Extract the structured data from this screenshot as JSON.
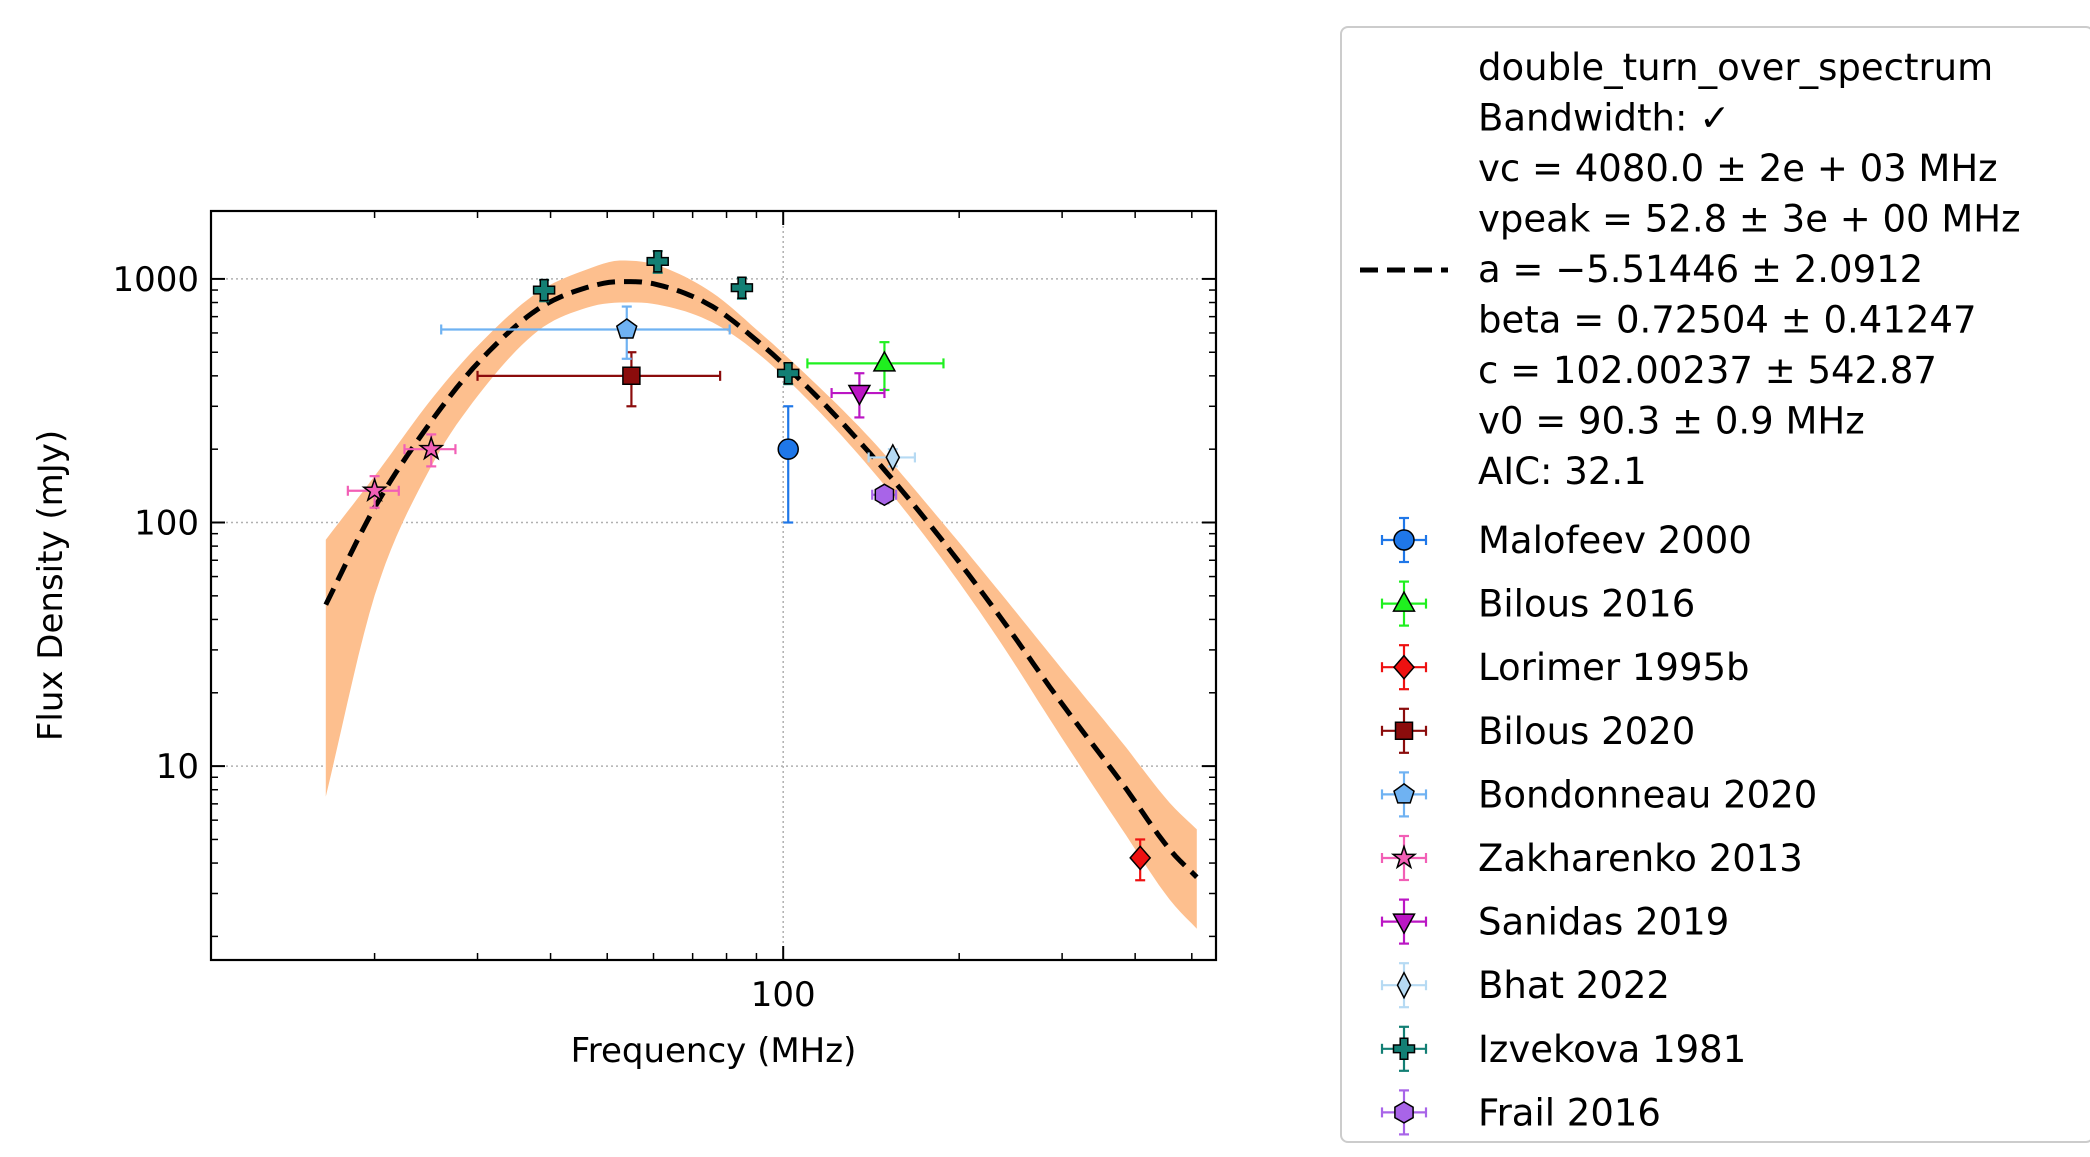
{
  "chart_data": {
    "type": "scatter",
    "xlabel": "Frequency (MHz)",
    "ylabel": "Flux Density (mJy)",
    "xscale": "log",
    "yscale": "log",
    "xlim": [
      10.5,
      550
    ],
    "ylim": [
      1.6,
      1900
    ],
    "x_ticks": [
      {
        "value": 100,
        "label": "100"
      }
    ],
    "y_ticks": [
      {
        "value": 10,
        "label": "10"
      },
      {
        "value": 100,
        "label": "100"
      },
      {
        "value": 1000,
        "label": "1000"
      }
    ],
    "grid": true,
    "legend_position": "outside-right",
    "fit": {
      "name": "double_turn_over_spectrum",
      "label_lines": [
        "double_turn_over_spectrum",
        "Bandwidth: ✓",
        "vc = 4080.0 ± 2e + 03 MHz",
        "vpeak = 52.8 ± 3e + 00 MHz",
        "a = −5.51446 ± 2.0912",
        "beta = 0.72504 ± 0.41247",
        "c = 102.00237 ± 542.87",
        "v0 = 90.3 ± 0.9 MHz",
        "AIC: 32.1"
      ],
      "color": "#000000",
      "band_color": "#fdbf8e",
      "x_range": [
        16.5,
        510
      ],
      "vpeak": 52.8,
      "peak_flux": 975,
      "curve": [
        {
          "x": 16.5,
          "y": 46,
          "lo": 7.5,
          "hi": 85
        },
        {
          "x": 20,
          "y": 115,
          "lo": 50,
          "hi": 155
        },
        {
          "x": 25,
          "y": 260,
          "lo": 170,
          "hi": 320
        },
        {
          "x": 30,
          "y": 450,
          "lo": 330,
          "hi": 530
        },
        {
          "x": 38,
          "y": 750,
          "lo": 610,
          "hi": 880
        },
        {
          "x": 46,
          "y": 920,
          "lo": 760,
          "hi": 1090
        },
        {
          "x": 52.8,
          "y": 975,
          "lo": 800,
          "hi": 1190
        },
        {
          "x": 60,
          "y": 955,
          "lo": 790,
          "hi": 1150
        },
        {
          "x": 75,
          "y": 780,
          "lo": 670,
          "hi": 890
        },
        {
          "x": 90,
          "y": 560,
          "lo": 500,
          "hi": 620
        },
        {
          "x": 110,
          "y": 360,
          "lo": 320,
          "hi": 400
        },
        {
          "x": 140,
          "y": 195,
          "lo": 170,
          "hi": 225
        },
        {
          "x": 180,
          "y": 95,
          "lo": 80,
          "hi": 112
        },
        {
          "x": 230,
          "y": 44,
          "lo": 35,
          "hi": 55
        },
        {
          "x": 300,
          "y": 18,
          "lo": 13,
          "hi": 25
        },
        {
          "x": 380,
          "y": 8.5,
          "lo": 5.5,
          "hi": 12.5
        },
        {
          "x": 460,
          "y": 4.5,
          "lo": 2.8,
          "hi": 7
        },
        {
          "x": 510,
          "y": 3.5,
          "lo": 2.15,
          "hi": 5.5
        }
      ]
    },
    "series": [
      {
        "name": "Malofeev 2000",
        "marker": "circle",
        "color": "#1f77e8",
        "points": [
          {
            "x": 102,
            "y": 200,
            "xlo": 102,
            "xhi": 102,
            "ylo": 100,
            "yhi": 300
          }
        ]
      },
      {
        "name": "Bilous 2016",
        "marker": "triangle-up",
        "color": "#1ff01f",
        "points": [
          {
            "x": 149,
            "y": 450,
            "xlo": 110,
            "xhi": 188,
            "ylo": 350,
            "yhi": 550
          }
        ]
      },
      {
        "name": "Lorimer 1995b",
        "marker": "diamond",
        "color": "#ee1111",
        "points": [
          {
            "x": 408,
            "y": 4.2,
            "xlo": 408,
            "xhi": 408,
            "ylo": 3.4,
            "yhi": 5.0
          }
        ]
      },
      {
        "name": "Bilous 2020",
        "marker": "square",
        "color": "#8b0c0c",
        "points": [
          {
            "x": 55,
            "y": 400,
            "xlo": 30,
            "xhi": 78,
            "ylo": 300,
            "yhi": 500
          }
        ]
      },
      {
        "name": "Bondonneau 2020",
        "marker": "pentagon",
        "color": "#6fb2f2",
        "points": [
          {
            "x": 54,
            "y": 620,
            "xlo": 26,
            "xhi": 81,
            "ylo": 470,
            "yhi": 770
          }
        ]
      },
      {
        "name": "Zakharenko 2013",
        "marker": "star",
        "color": "#f25fb6",
        "points": [
          {
            "x": 20,
            "y": 135,
            "xlo": 18,
            "xhi": 22,
            "ylo": 115,
            "yhi": 155
          },
          {
            "x": 25,
            "y": 200,
            "xlo": 22.5,
            "xhi": 27.5,
            "ylo": 170,
            "yhi": 230
          }
        ]
      },
      {
        "name": "Sanidas 2019",
        "marker": "triangle-down",
        "color": "#bb16c4",
        "points": [
          {
            "x": 135,
            "y": 340,
            "xlo": 121,
            "xhi": 149,
            "ylo": 270,
            "yhi": 410
          }
        ]
      },
      {
        "name": "Bhat 2022",
        "marker": "thin-diamond",
        "color": "#b6daf3",
        "points": [
          {
            "x": 154,
            "y": 185,
            "xlo": 140,
            "xhi": 168,
            "ylo": 170,
            "yhi": 200
          }
        ]
      },
      {
        "name": "Izvekova 1981",
        "marker": "plus",
        "color": "#137f74",
        "points": [
          {
            "x": 39,
            "y": 900,
            "xlo": 39,
            "xhi": 39,
            "ylo": 810,
            "yhi": 990
          },
          {
            "x": 61,
            "y": 1180,
            "xlo": 61,
            "xhi": 61,
            "ylo": 1060,
            "yhi": 1300
          },
          {
            "x": 85,
            "y": 920,
            "xlo": 85,
            "xhi": 85,
            "ylo": 830,
            "yhi": 1010
          },
          {
            "x": 102,
            "y": 410,
            "xlo": 102,
            "xhi": 102,
            "ylo": 370,
            "yhi": 450
          }
        ]
      },
      {
        "name": "Frail 2016",
        "marker": "hexagon",
        "color": "#a864e8",
        "points": [
          {
            "x": 149,
            "y": 130,
            "xlo": 142,
            "xhi": 156,
            "ylo": 120,
            "yhi": 140
          }
        ]
      }
    ]
  }
}
